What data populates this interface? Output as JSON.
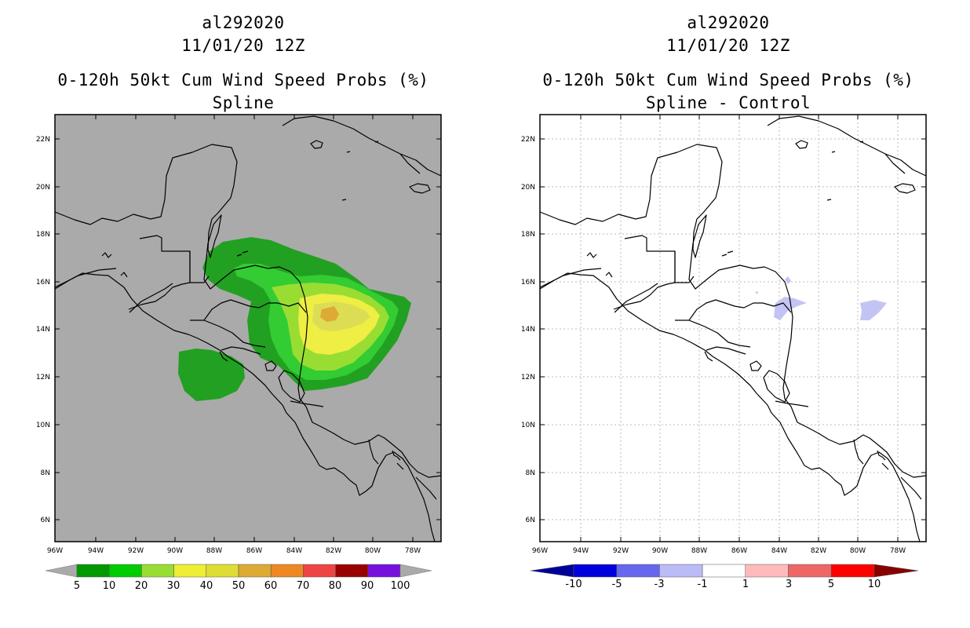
{
  "left": {
    "storm_id": "al292020",
    "date": "11/01/20 12Z",
    "title": "0-120h 50kt Cum Wind Speed Probs (%)",
    "subtitle": "Spline",
    "colorbar": {
      "labels": [
        "5",
        "10",
        "20",
        "30",
        "40",
        "50",
        "60",
        "70",
        "80",
        "90",
        "100"
      ],
      "colors": [
        "#009900",
        "#00cc00",
        "#99dd33",
        "#eeee33",
        "#dddd33",
        "#ddaa33",
        "#ee8822",
        "#ee4444",
        "#990000",
        "#7711dd"
      ],
      "end_color": "#aaaaaa"
    }
  },
  "right": {
    "storm_id": "al292020",
    "date": "11/01/20 12Z",
    "title": "0-120h 50kt Cum Wind Speed Probs (%)",
    "subtitle": "Spline - Control",
    "colorbar": {
      "labels": [
        "-10",
        "-5",
        "-3",
        "-1",
        "1",
        "3",
        "5",
        "10"
      ],
      "colors": [
        "#0000dd",
        "#6666ee",
        "#bbbbf8",
        "#ffffff",
        "#ffbbbb",
        "#ee6666",
        "#ff0000"
      ],
      "end_colors": [
        "#000099",
        "#880000"
      ]
    }
  },
  "axes": {
    "lat_labels": [
      "22N",
      "20N",
      "18N",
      "16N",
      "14N",
      "12N",
      "10N",
      "8N",
      "6N"
    ],
    "lon_labels": [
      "96W",
      "94W",
      "92W",
      "90W",
      "88W",
      "86W",
      "84W",
      "82W",
      "80W",
      "78W"
    ]
  },
  "colors": {
    "ocean_gray": "#aaaaaa",
    "dark_green": "#22a022",
    "light_green": "#33cc33",
    "lime": "#99dd33",
    "yellow": "#eeee44",
    "gold": "#dddd55",
    "orange": "#ddaa33",
    "diff_blue": "#c4c4f4"
  }
}
